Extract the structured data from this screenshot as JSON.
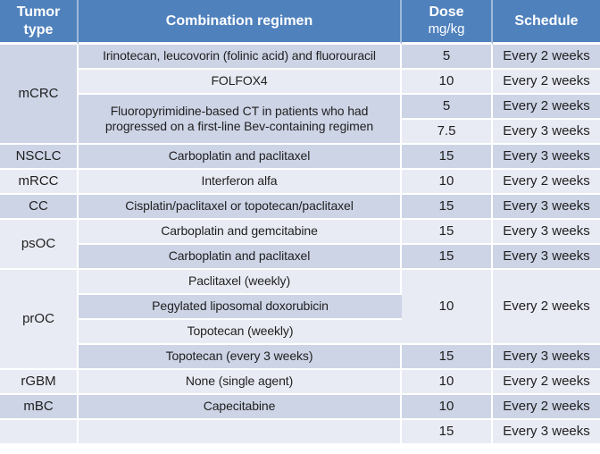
{
  "colors": {
    "header_bg": "#4f81bd",
    "header_text": "#ffffff",
    "band_dark": "#cdd4e6",
    "band_light": "#e9ebf4",
    "body_text": "#1f1f1f",
    "border": "#ffffff"
  },
  "table": {
    "header": {
      "tumor_line1": "Tumor",
      "tumor_line2": "type",
      "combination": "Combination regimen",
      "dose_line1": "Dose",
      "dose_line2": "mg/kg",
      "schedule": "Schedule"
    },
    "rows": [
      {
        "tumor": "mCRC",
        "regimen": "Irinotecan, leucovorin (folinic acid) and fluorouracil",
        "dose": "5",
        "schedule": "Every 2 weeks"
      },
      {
        "regimen": "FOLFOX4",
        "dose": "10",
        "schedule": "Every 2 weeks"
      },
      {
        "regimen": "Fluoropyrimidine-based CT in patients who had progressed on a first-line Bev-containing regimen",
        "dose": "5",
        "schedule": "Every 2 weeks"
      },
      {
        "dose": "7.5",
        "schedule": "Every 3 weeks"
      },
      {
        "tumor": "NSCLC",
        "regimen": "Carboplatin and paclitaxel",
        "dose": "15",
        "schedule": "Every 3 weeks"
      },
      {
        "tumor": "mRCC",
        "regimen": "Interferon alfa",
        "dose": "10",
        "schedule": "Every 2 weeks"
      },
      {
        "tumor": "CC",
        "regimen": "Cisplatin/paclitaxel or topotecan/paclitaxel",
        "dose": "15",
        "schedule": "Every 3 weeks"
      },
      {
        "tumor": "psOC",
        "regimen": "Carboplatin and gemcitabine",
        "dose": "15",
        "schedule": "Every 3 weeks"
      },
      {
        "regimen": "Carboplatin and paclitaxel",
        "dose": "15",
        "schedule": "Every 3 weeks"
      },
      {
        "tumor": "prOC",
        "regimen": "Paclitaxel (weekly)",
        "dose": "10",
        "schedule": "Every 2 weeks"
      },
      {
        "regimen": "Pegylated liposomal doxorubicin"
      },
      {
        "regimen": "Topotecan (weekly)"
      },
      {
        "regimen": "Topotecan (every 3 weeks)",
        "dose": "15",
        "schedule": "Every 3 weeks"
      },
      {
        "tumor": "rGBM",
        "regimen": "None (single agent)",
        "dose": "10",
        "schedule": "Every 2 weeks"
      },
      {
        "tumor": "mBC",
        "regimen": "Capecitabine",
        "dose": "10",
        "schedule": "Every 2 weeks"
      },
      {
        "tumor": "",
        "regimen": "",
        "dose": "15",
        "schedule": "Every 3 weeks"
      }
    ]
  }
}
